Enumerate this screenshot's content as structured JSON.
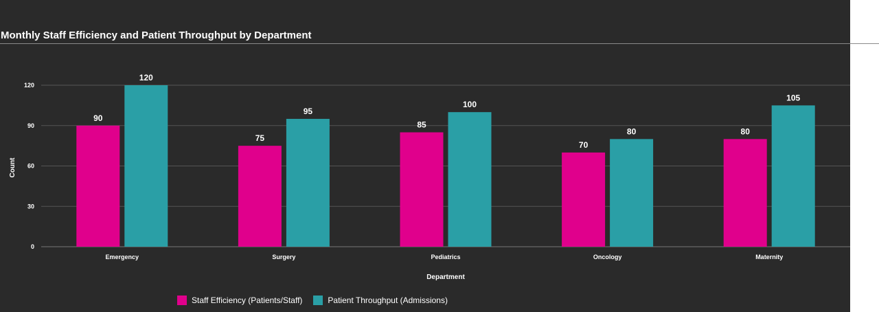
{
  "chart_data": {
    "type": "bar",
    "title": "Monthly Staff Efficiency and Patient Throughput by Department",
    "xlabel": "Department",
    "ylabel": "Count",
    "categories": [
      "Emergency",
      "Surgery",
      "Pediatrics",
      "Oncology",
      "Maternity"
    ],
    "series": [
      {
        "name": "Staff Efficiency (Patients/Staff)",
        "values": [
          90,
          75,
          85,
          70,
          80
        ],
        "color": "#e0008c"
      },
      {
        "name": "Patient Throughput (Admissions)",
        "values": [
          120,
          95,
          100,
          80,
          105
        ],
        "color": "#2a9fa6"
      }
    ],
    "ylim": [
      0,
      120
    ],
    "yticks": [
      0,
      30,
      60,
      90,
      120
    ],
    "grid": true,
    "legend_position": "bottom"
  },
  "colors": {
    "background": "#2a2a2a",
    "gridline": "#555555",
    "text": "#ffffff"
  }
}
